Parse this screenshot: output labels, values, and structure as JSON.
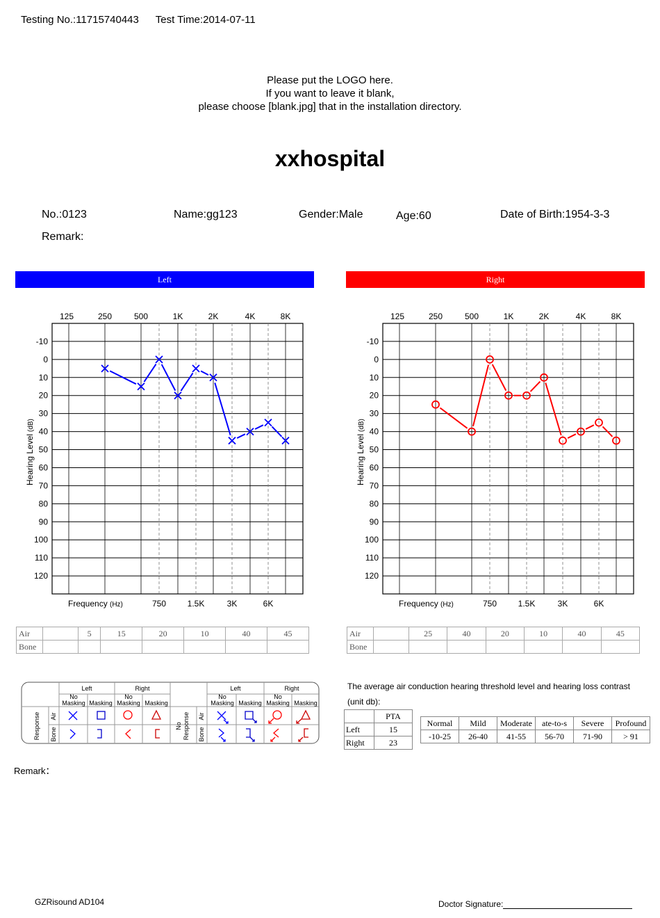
{
  "header": {
    "testing_no": "Testing No.:11715740443",
    "test_time": "Test Time:2014-07-11"
  },
  "logo_note": {
    "line1": "Please put the LOGO here.",
    "line2": "If you want to leave it blank,",
    "line3": "please choose [blank.jpg] that in the installation directory."
  },
  "hospital": "xxhospital",
  "patient": {
    "no": "No.:0123",
    "name": "Name:gg123",
    "gender": "Gender:Male",
    "age": "Age:60",
    "dob": "Date of Birth:1954-3-3",
    "remark": "Remark:"
  },
  "charts": {
    "left_title": "Left",
    "right_title": "Right",
    "left_color": "#0000ff",
    "right_color": "#ff0000",
    "top_freq_labels": [
      "125",
      "250",
      "500",
      "1K",
      "2K",
      "4K",
      "8K"
    ],
    "bottom_freq_labels": [
      "750",
      "1.5K",
      "3K",
      "6K"
    ],
    "xlabel": "Frequency",
    "xlabel_unit": "(Hz)",
    "ylabel": "Hearing Level",
    "ylabel_unit": "(dB)",
    "y_ticks": [
      "-10",
      "0",
      "10",
      "20",
      "30",
      "40",
      "50",
      "60",
      "70",
      "80",
      "90",
      "100",
      "110",
      "120"
    ]
  },
  "chart_data": [
    {
      "type": "line",
      "title": "Left",
      "series": [
        {
          "name": "Air",
          "marker": "x",
          "color": "#0000ff",
          "x": [
            "250",
            "500",
            "750",
            "1K",
            "1.5K",
            "2K",
            "3K",
            "4K",
            "6K",
            "8K"
          ],
          "values": [
            5,
            15,
            0,
            20,
            5,
            10,
            45,
            40,
            35,
            45
          ]
        }
      ],
      "ylim": [
        -20,
        130
      ],
      "y_inverted": true
    },
    {
      "type": "line",
      "title": "Right",
      "series": [
        {
          "name": "Air",
          "marker": "o",
          "color": "#ff0000",
          "x": [
            "250",
            "500",
            "750",
            "1K",
            "1.5K",
            "2K",
            "3K",
            "4K",
            "6K",
            "8K"
          ],
          "values": [
            25,
            40,
            0,
            20,
            20,
            10,
            45,
            40,
            35,
            45
          ]
        }
      ],
      "ylim": [
        -20,
        130
      ],
      "y_inverted": true
    }
  ],
  "value_tables": {
    "air_label": "Air",
    "bone_label": "Bone",
    "left_air": [
      "",
      "5",
      "15",
      "20",
      "10",
      "40",
      "45"
    ],
    "right_air": [
      "",
      "25",
      "40",
      "20",
      "10",
      "40",
      "45"
    ]
  },
  "legend": {
    "left": "Left",
    "right": "Right",
    "no_masking_1": "No",
    "no_masking_2": "Masking",
    "masking": "Masking",
    "response": "Response",
    "no_response_1": "No",
    "no_response_2": "Response",
    "air": "Air",
    "bone": "Bone"
  },
  "summary": {
    "caption1": "The average air conduction hearing threshold level and hearing loss contrast",
    "caption2": "(unit db):",
    "pta_header": "PTA",
    "left_label": "Left",
    "left_pta": "15",
    "right_label": "Right",
    "right_pta": "23",
    "grades": [
      "Normal",
      "Mild",
      "Moderate",
      "ate-to-s",
      "Severe",
      "Profound"
    ],
    "ranges": [
      "-10-25",
      "26-40",
      "41-55",
      "56-70",
      "71-90",
      "> 91"
    ]
  },
  "footer": {
    "remark": "Remark：",
    "device": "GZRisound AD104",
    "signature": "Doctor Signature:"
  }
}
